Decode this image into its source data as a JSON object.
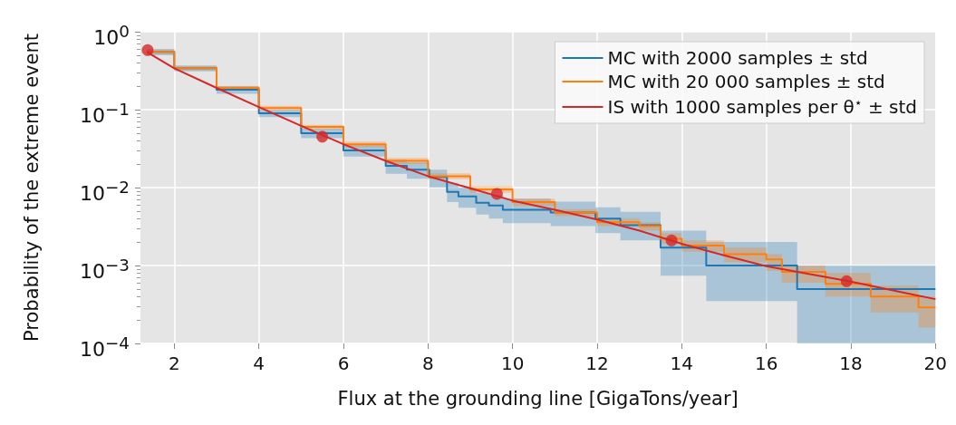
{
  "chart_data": {
    "type": "line",
    "xlabel": "Flux at the grounding line [GigaTons/year]",
    "ylabel": "Probability of the extreme event",
    "log": "y",
    "grid": true,
    "legend": "top right",
    "xlim": [
      1.2,
      20
    ],
    "xticks": [
      2,
      4,
      6,
      8,
      10,
      12,
      14,
      16,
      18,
      20
    ],
    "ylim": [
      0.0001,
      1
    ],
    "yticks": [
      {
        "value": 0.0001,
        "label": "10$^{−4}$"
      },
      {
        "value": 0.001,
        "label": "10$^{−3}$"
      },
      {
        "value": 0.01,
        "label": "10$^{−2}$"
      },
      {
        "value": 0.1,
        "label": "10$^{−1}$"
      },
      {
        "value": 1,
        "label": "10$^{0}$"
      }
    ],
    "series": [
      {
        "name": "MC with 2000 samples ± std",
        "type": "step",
        "color": "#1f77b4",
        "x": [
          1.35,
          2,
          3,
          4,
          5,
          6,
          7,
          7.5,
          8.03,
          8.45,
          8.72,
          9.14,
          9.44,
          9.77,
          10.9,
          11.96,
          12.55,
          13.5,
          14.58,
          16.73,
          20
        ],
        "values": [
          0.55,
          0.34,
          0.18,
          0.09,
          0.05,
          0.03,
          0.019,
          0.017,
          0.0137,
          0.0088,
          0.0077,
          0.0064,
          0.0059,
          0.0052,
          0.0048,
          0.004,
          0.0033,
          0.0017,
          0.001,
          0.0005,
          0.0005
        ],
        "lower": [
          0.5,
          0.31,
          0.16,
          0.08,
          0.043,
          0.025,
          0.015,
          0.013,
          0.01,
          0.0065,
          0.0055,
          0.0045,
          0.004,
          0.0035,
          0.0032,
          0.0026,
          0.0021,
          0.00074,
          0.00035,
          0.0001,
          0.0001
        ],
        "upper": [
          0.6,
          0.37,
          0.2,
          0.1,
          0.057,
          0.035,
          0.023,
          0.021,
          0.017,
          0.0115,
          0.01,
          0.0085,
          0.008,
          0.0072,
          0.0066,
          0.0056,
          0.0049,
          0.0028,
          0.002,
          0.001,
          0.001
        ]
      },
      {
        "name": "MC with 20 000 samples ± std",
        "type": "step",
        "color": "#ff7f0e",
        "x": [
          1.35,
          2,
          3,
          4,
          5,
          6,
          7,
          8,
          9,
          10,
          11,
          12,
          13,
          13.5,
          14,
          15,
          16,
          16.37,
          17.4,
          18.47,
          19.6,
          20
        ],
        "values": [
          0.55,
          0.34,
          0.19,
          0.105,
          0.06,
          0.036,
          0.022,
          0.014,
          0.0095,
          0.0065,
          0.0048,
          0.0036,
          0.0032,
          0.0022,
          0.0018,
          0.0014,
          0.0012,
          0.00083,
          0.00058,
          0.0004,
          0.00029,
          0.00029
        ],
        "lower": [
          0.52,
          0.32,
          0.18,
          0.098,
          0.056,
          0.033,
          0.02,
          0.0128,
          0.0086,
          0.0058,
          0.0043,
          0.0032,
          0.0028,
          0.0019,
          0.0015,
          0.0011,
          0.00085,
          0.0006,
          0.0004,
          0.00025,
          0.00016,
          0.00016
        ],
        "upper": [
          0.58,
          0.36,
          0.2,
          0.112,
          0.064,
          0.039,
          0.024,
          0.0152,
          0.0104,
          0.0072,
          0.0053,
          0.004,
          0.0036,
          0.0026,
          0.0021,
          0.0017,
          0.0014,
          0.001,
          0.0008,
          0.00055,
          0.0004,
          0.0004
        ]
      },
      {
        "name": "IS with 1000 samples per θ$^{⋆}$ ± std",
        "color": "#d62728",
        "x": [
          1.35,
          2,
          3,
          4,
          5,
          6,
          7,
          8,
          9,
          10,
          11,
          12,
          13,
          14,
          15,
          16,
          17,
          18,
          19,
          20
        ],
        "values": [
          0.55,
          0.34,
          0.19,
          0.108,
          0.062,
          0.036,
          0.022,
          0.014,
          0.0098,
          0.0068,
          0.0052,
          0.0039,
          0.0028,
          0.0019,
          0.00135,
          0.00098,
          0.00078,
          0.00062,
          0.00048,
          0.00037
        ]
      },
      {
        "type": "scatter",
        "marker": "circle",
        "color": "#d62728",
        "x": [
          1.37,
          5.5,
          9.63,
          13.76,
          17.9
        ],
        "values": [
          0.58,
          0.045,
          0.0083,
          0.0021,
          0.00063
        ]
      }
    ]
  }
}
